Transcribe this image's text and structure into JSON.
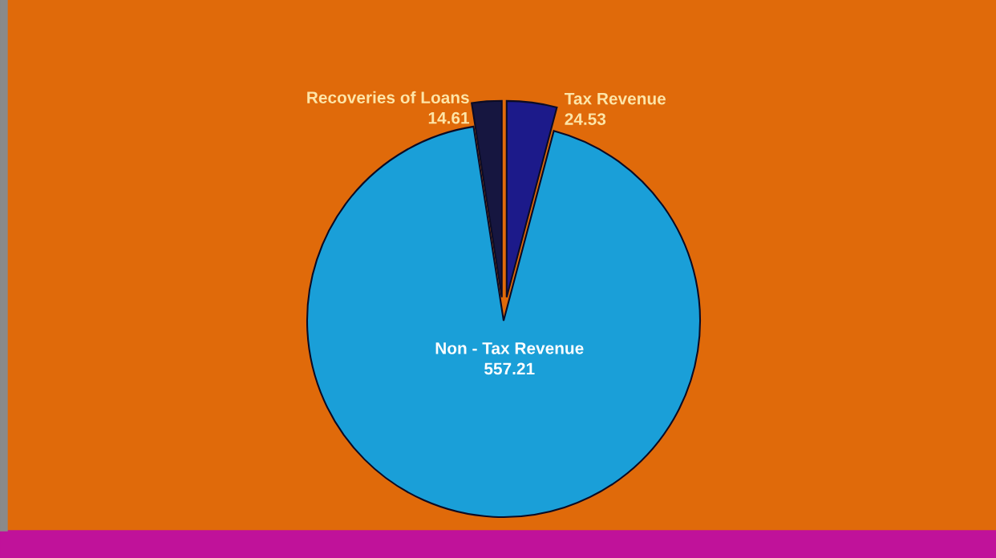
{
  "chart_data": {
    "type": "pie",
    "categories": [
      "Tax Revenue",
      "Non - Tax Revenue",
      "Recoveries of Loans"
    ],
    "values": [
      24.53,
      557.21,
      14.61
    ],
    "colors": [
      "#1c1a8a",
      "#1a9fd8",
      "#161640"
    ],
    "data_labels": true
  }
}
